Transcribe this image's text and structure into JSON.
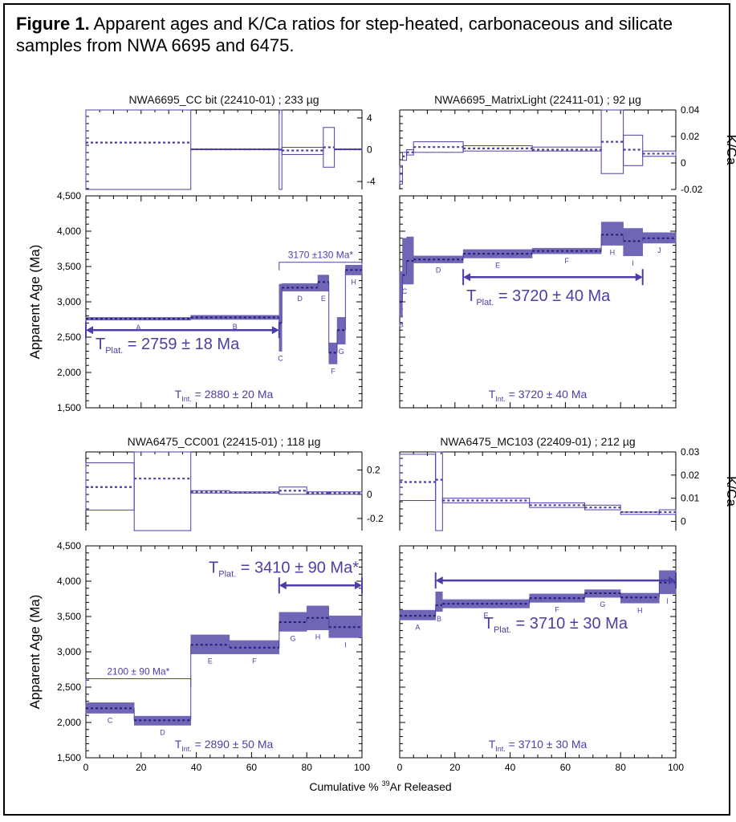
{
  "caption": {
    "label": "Figure 1.",
    "text": " Apparent ages and K/Ca ratios for step-heated, carbonaceous and silicate samples from NWA 6695 and 6475."
  },
  "colors": {
    "accent": "#4b3fa6",
    "fill": "#6f66b5",
    "axis": "#000000"
  },
  "shared": {
    "xlabel": "Cumulative % 39Ar Released",
    "xlabel_pre": "Cumulative % ",
    "xlabel_sup": "39",
    "xlabel_post": "Ar Released",
    "ylabel": "Apparent Age (Ma)",
    "kca_label": "K/Ca",
    "x_ticks": [
      0,
      20,
      40,
      60,
      80,
      100
    ],
    "age_ticks": [
      "1,500",
      "2,000",
      "2,500",
      "3,000",
      "3,500",
      "4,000",
      "4,500"
    ]
  },
  "chart_data": [
    {
      "type": "bar",
      "title": "NWA6695_CC bit (22410-01) ; 233 µg",
      "xlim": [
        0,
        100
      ],
      "kca": {
        "ylim": [
          -5,
          5
        ],
        "ticks": [
          -4,
          0,
          4
        ],
        "tick_labels": [
          "-4",
          "0",
          "4"
        ],
        "side": "right",
        "steps": [
          {
            "x0": 0,
            "x1": 38,
            "v": 0.9,
            "lo": -10,
            "hi": 10
          },
          {
            "x0": 38,
            "x1": 70,
            "v": 0.05,
            "lo": 0.0,
            "hi": 0.1
          },
          {
            "x0": 70,
            "x1": 71,
            "v": 0,
            "lo": -10,
            "hi": 10
          },
          {
            "x0": 71,
            "x1": 86,
            "v": -0.1,
            "lo": -0.6,
            "hi": 0.3
          },
          {
            "x0": 86,
            "x1": 90,
            "v": 0.3,
            "lo": -2.2,
            "hi": 2.8
          },
          {
            "x0": 90,
            "x1": 100,
            "v": 0.05,
            "lo": 0.0,
            "hi": 0.1
          }
        ]
      },
      "age": {
        "ylim": [
          1500,
          4500
        ],
        "steps": [
          {
            "label": "A",
            "x0": 0,
            "x1": 38,
            "v": 2760,
            "lo": 2740,
            "hi": 2780
          },
          {
            "label": "B",
            "x0": 38,
            "x1": 70,
            "v": 2780,
            "lo": 2750,
            "hi": 2810
          },
          {
            "label": "C",
            "x0": 70,
            "x1": 71,
            "v": 2700,
            "lo": 2300,
            "hi": 3250
          },
          {
            "label": "D",
            "x0": 71,
            "x1": 84,
            "v": 3200,
            "lo": 3150,
            "hi": 3260
          },
          {
            "label": "E",
            "x0": 84,
            "x1": 88,
            "v": 3280,
            "lo": 3150,
            "hi": 3380
          },
          {
            "label": "F",
            "x0": 88,
            "x1": 91,
            "v": 2280,
            "lo": 2120,
            "hi": 2420
          },
          {
            "label": "G",
            "x0": 91,
            "x1": 94,
            "v": 2600,
            "lo": 2400,
            "hi": 2780
          },
          {
            "label": "H",
            "x0": 94,
            "x1": 100,
            "v": 3450,
            "lo": 3380,
            "hi": 3520
          }
        ],
        "plateau": {
          "x0": 0,
          "x1": 70,
          "y": 2600,
          "label_pre": "T",
          "label_sub": "Plat.",
          "label_post": " = 2759 ± 18 Ma"
        },
        "bracket": {
          "x0": 70,
          "x1": 100,
          "y": 3560,
          "label": "3170 ±130 Ma*"
        },
        "integrated": {
          "label_pre": "T",
          "label_sub": "Int.",
          "label_post": " = 2880 ± 20 Ma"
        }
      }
    },
    {
      "type": "bar",
      "title": "NWA6695_MatrixLight (22411-01) ; 92 µg",
      "xlim": [
        0,
        100
      ],
      "kca": {
        "ylim": [
          -0.02,
          0.04
        ],
        "ticks": [
          -0.02,
          0,
          0.02,
          0.04
        ],
        "tick_labels": [
          "-0.02",
          "0",
          "0.02",
          "0.04"
        ],
        "side": "right",
        "steps": [
          {
            "x0": 0,
            "x1": 1,
            "v": -0.008,
            "lo": -0.016,
            "hi": -0.002
          },
          {
            "x0": 1,
            "x1": 2.5,
            "v": 0.005,
            "lo": 0.002,
            "hi": 0.008
          },
          {
            "x0": 2.5,
            "x1": 5,
            "v": 0.008,
            "lo": 0.006,
            "hi": 0.01
          },
          {
            "x0": 5,
            "x1": 23,
            "v": 0.012,
            "lo": 0.008,
            "hi": 0.016
          },
          {
            "x0": 23,
            "x1": 48,
            "v": 0.011,
            "lo": 0.009,
            "hi": 0.013
          },
          {
            "x0": 48,
            "x1": 73,
            "v": 0.01,
            "lo": 0.009,
            "hi": 0.012
          },
          {
            "x0": 73,
            "x1": 81,
            "v": 0.016,
            "lo": -0.008,
            "hi": 0.04
          },
          {
            "x0": 81,
            "x1": 88,
            "v": 0.01,
            "lo": -0.002,
            "hi": 0.021
          },
          {
            "x0": 88,
            "x1": 100,
            "v": 0.007,
            "lo": 0.005,
            "hi": 0.009
          }
        ]
      },
      "age": {
        "ylim": [
          1500,
          4500
        ],
        "steps": [
          {
            "label": "B",
            "x0": 0,
            "x1": 1,
            "v": 3000,
            "lo": 2780,
            "hi": 3430
          },
          {
            "label": "C",
            "x0": 1,
            "x1": 2.5,
            "v": 3380,
            "lo": 3250,
            "hi": 3900
          },
          {
            "label": "",
            "x0": 2.5,
            "x1": 5,
            "v": 3580,
            "lo": 3250,
            "hi": 3920
          },
          {
            "label": "D",
            "x0": 5,
            "x1": 23,
            "v": 3600,
            "lo": 3550,
            "hi": 3650
          },
          {
            "label": "E",
            "x0": 23,
            "x1": 48,
            "v": 3680,
            "lo": 3620,
            "hi": 3740
          },
          {
            "label": "F",
            "x0": 48,
            "x1": 73,
            "v": 3720,
            "lo": 3680,
            "hi": 3760
          },
          {
            "label": "H",
            "x0": 73,
            "x1": 81,
            "v": 3950,
            "lo": 3800,
            "hi": 4130
          },
          {
            "label": "I",
            "x0": 81,
            "x1": 88,
            "v": 3860,
            "lo": 3650,
            "hi": 4040
          },
          {
            "label": "J",
            "x0": 88,
            "x1": 100,
            "v": 3900,
            "lo": 3830,
            "hi": 3980
          }
        ],
        "plateau": {
          "x0": 23,
          "x1": 88,
          "y": 3350,
          "label_pre": "T",
          "label_sub": "Plat.",
          "label_post": " = 3720 ±   40 Ma"
        },
        "integrated": {
          "label_pre": "T",
          "label_sub": "Int.",
          "label_post": " = 3720 ± 40 Ma"
        }
      }
    },
    {
      "type": "bar",
      "title": "NWA6475_CC001 (22415-01) ; 118 µg",
      "xlim": [
        0,
        100
      ],
      "kca": {
        "ylim": [
          -0.3,
          0.35
        ],
        "ticks": [
          -0.2,
          0,
          0.2
        ],
        "tick_labels": [
          "-0.2",
          "0",
          "0.2"
        ],
        "side": "right",
        "steps": [
          {
            "x0": 0,
            "x1": 17.5,
            "v": 0.06,
            "lo": -0.13,
            "hi": 0.26
          },
          {
            "x0": 17.5,
            "x1": 38,
            "v": 0.13,
            "lo": -0.35,
            "hi": 0.4
          },
          {
            "x0": 38,
            "x1": 52,
            "v": 0.02,
            "lo": 0.01,
            "hi": 0.03
          },
          {
            "x0": 52,
            "x1": 70,
            "v": 0.015,
            "lo": 0.01,
            "hi": 0.02
          },
          {
            "x0": 70,
            "x1": 80,
            "v": 0.03,
            "lo": 0.0,
            "hi": 0.06
          },
          {
            "x0": 80,
            "x1": 88,
            "v": 0.01,
            "lo": 0.0,
            "hi": 0.02
          },
          {
            "x0": 88,
            "x1": 100,
            "v": 0.01,
            "lo": 0.0,
            "hi": 0.02
          }
        ]
      },
      "age": {
        "ylim": [
          1500,
          4500
        ],
        "steps": [
          {
            "label": "C",
            "x0": 0,
            "x1": 17.5,
            "v": 2200,
            "lo": 2130,
            "hi": 2280
          },
          {
            "label": "D",
            "x0": 17.5,
            "x1": 38,
            "v": 2030,
            "lo": 1960,
            "hi": 2090
          },
          {
            "label": "E",
            "x0": 38,
            "x1": 52,
            "v": 3100,
            "lo": 2970,
            "hi": 3240
          },
          {
            "label": "F",
            "x0": 52,
            "x1": 70,
            "v": 3060,
            "lo": 2970,
            "hi": 3160
          },
          {
            "label": "G",
            "x0": 70,
            "x1": 80,
            "v": 3420,
            "lo": 3290,
            "hi": 3560
          },
          {
            "label": "H",
            "x0": 80,
            "x1": 88,
            "v": 3480,
            "lo": 3310,
            "hi": 3650
          },
          {
            "label": "I",
            "x0": 88,
            "x1": 100,
            "v": 3350,
            "lo": 3200,
            "hi": 3510
          }
        ],
        "plateau": {
          "x0": 70,
          "x1": 100,
          "y": 3940,
          "label_pre": "T",
          "label_sub": "Plat.",
          "label_post": " = 3410 ± 90 Ma*"
        },
        "bracket": {
          "x0": 0,
          "x1": 38,
          "y": 2620,
          "label": "2100 ± 90 Ma*"
        },
        "integrated": {
          "label_pre": "T",
          "label_sub": "Int.",
          "label_post": " = 2890 ± 50 Ma"
        }
      }
    },
    {
      "type": "bar",
      "title": "NWA6475_MC103 (22409-01) ; 212 µg",
      "xlim": [
        0,
        100
      ],
      "kca": {
        "ylim": [
          -0.004,
          0.03
        ],
        "ticks": [
          0,
          0.01,
          0.02,
          0.03
        ],
        "tick_labels": [
          "0",
          "0.01",
          "0.02",
          "0.03"
        ],
        "side": "right",
        "steps": [
          {
            "x0": 0,
            "x1": 13,
            "v": 0.017,
            "lo": 0.009,
            "hi": 0.029
          },
          {
            "x0": 13,
            "x1": 15.5,
            "v": 0.018,
            "lo": -0.01,
            "hi": 0.04
          },
          {
            "x0": 15.5,
            "x1": 47,
            "v": 0.009,
            "lo": 0.008,
            "hi": 0.01
          },
          {
            "x0": 47,
            "x1": 67,
            "v": 0.007,
            "lo": 0.006,
            "hi": 0.008
          },
          {
            "x0": 67,
            "x1": 80,
            "v": 0.006,
            "lo": 0.005,
            "hi": 0.007
          },
          {
            "x0": 80,
            "x1": 94,
            "v": 0.004,
            "lo": 0.003,
            "hi": 0.004
          },
          {
            "x0": 94,
            "x1": 100,
            "v": 0.004,
            "lo": 0.003,
            "hi": 0.005
          }
        ]
      },
      "age": {
        "ylim": [
          1500,
          4500
        ],
        "steps": [
          {
            "label": "A",
            "x0": 0,
            "x1": 13,
            "v": 3510,
            "lo": 3450,
            "hi": 3590
          },
          {
            "label": "B",
            "x0": 13,
            "x1": 15.5,
            "v": 3660,
            "lo": 3570,
            "hi": 3850
          },
          {
            "label": "E",
            "x0": 15.5,
            "x1": 47,
            "v": 3680,
            "lo": 3620,
            "hi": 3740
          },
          {
            "label": "F",
            "x0": 47,
            "x1": 67,
            "v": 3760,
            "lo": 3700,
            "hi": 3820
          },
          {
            "label": "G",
            "x0": 67,
            "x1": 80,
            "v": 3830,
            "lo": 3770,
            "hi": 3880
          },
          {
            "label": "H",
            "x0": 80,
            "x1": 94,
            "v": 3770,
            "lo": 3690,
            "hi": 3830
          },
          {
            "label": "I",
            "x0": 94,
            "x1": 100,
            "v": 3980,
            "lo": 3820,
            "hi": 4150
          }
        ],
        "plateau": {
          "x0": 13,
          "x1": 100,
          "y": 4010,
          "label_pre": "T",
          "label_sub": "Plat.",
          "label_post": " = 3710 ± 30 Ma"
        },
        "integrated": {
          "label_pre": "T",
          "label_sub": "Int.",
          "label_post": " = 3710 ± 30 Ma"
        }
      }
    }
  ]
}
